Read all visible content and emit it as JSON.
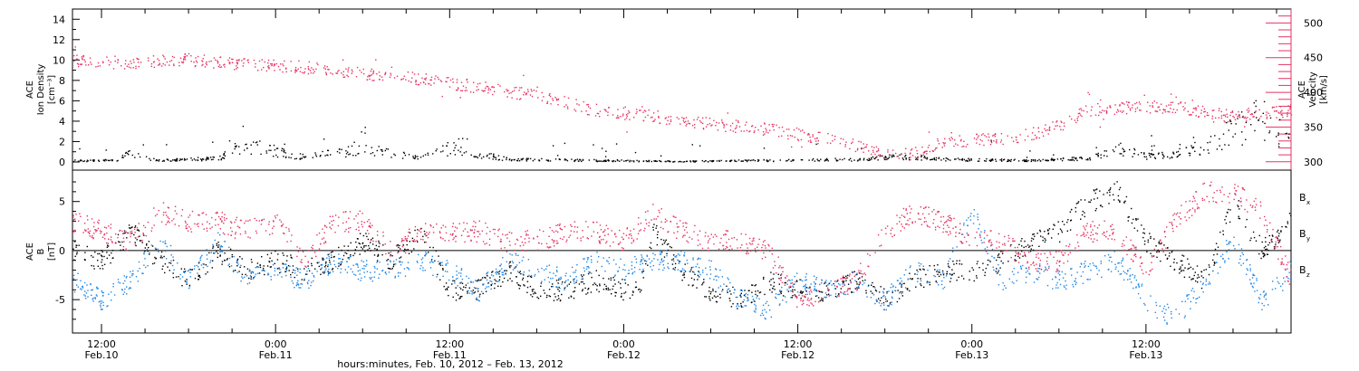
{
  "colors": {
    "black": "#000000",
    "red": "#e63363",
    "blue": "#1f87e6"
  },
  "footer": "hours:minutes, Feb. 10, 2012 – Feb. 13, 2012",
  "chart_data": [
    {
      "type": "scatter",
      "panel": "top",
      "ylabel": [
        "ACE",
        "Ion Density",
        "[cm⁻³]"
      ],
      "ylim": [
        -0.8,
        15
      ],
      "yticks": [
        0,
        2,
        4,
        6,
        8,
        10,
        12,
        14
      ],
      "ylabel_right": [
        "ACE",
        "Velocity",
        "[km/s]"
      ],
      "ylim_right": [
        288,
        520
      ],
      "yticks_right": [
        300,
        350,
        400,
        450,
        500
      ],
      "x_hours": [
        0,
        84
      ],
      "series": [
        {
          "axis": "left",
          "color": "black",
          "points": [
            [
              0,
              0.2
            ],
            [
              3,
              0.2
            ],
            [
              4,
              0.9
            ],
            [
              6,
              0.2
            ],
            [
              10,
              0.4
            ],
            [
              12,
              1.7
            ],
            [
              16,
              0.5
            ],
            [
              20,
              1.3
            ],
            [
              24,
              0.4
            ],
            [
              26,
              1.4
            ],
            [
              30,
              0.3
            ],
            [
              36,
              0.2
            ],
            [
              42,
              0.1
            ],
            [
              48,
              0.2
            ],
            [
              54,
              0.3
            ],
            [
              57,
              0.6
            ],
            [
              60,
              0.3
            ],
            [
              66,
              0.2
            ],
            [
              70,
              0.4
            ],
            [
              72,
              1.4
            ],
            [
              74,
              0.6
            ],
            [
              76,
              0.8
            ],
            [
              78,
              1.6
            ],
            [
              80,
              3.0
            ],
            [
              82,
              4.5
            ],
            [
              84,
              2.0
            ]
          ]
        },
        {
          "axis": "right",
          "color": "red",
          "points": [
            [
              0,
              446
            ],
            [
              4,
              443
            ],
            [
              8,
              448
            ],
            [
              12,
              440
            ],
            [
              16,
              437
            ],
            [
              20,
              428
            ],
            [
              24,
              420
            ],
            [
              28,
              408
            ],
            [
              32,
              396
            ],
            [
              36,
              375
            ],
            [
              40,
              366
            ],
            [
              44,
              355
            ],
            [
              48,
              347
            ],
            [
              52,
              334
            ],
            [
              56,
              312
            ],
            [
              58,
              312
            ],
            [
              60,
              330
            ],
            [
              64,
              334
            ],
            [
              66,
              340
            ],
            [
              68,
              352
            ],
            [
              70,
              375
            ],
            [
              72,
              378
            ],
            [
              76,
              380
            ],
            [
              80,
              366
            ],
            [
              84,
              375
            ]
          ]
        }
      ]
    },
    {
      "type": "scatter",
      "panel": "bottom",
      "ylabel": [
        "ACE",
        "B",
        "[nT]"
      ],
      "ylim": [
        -8.4,
        8.2
      ],
      "yticks": [
        -5,
        0,
        5
      ],
      "x_hours": [
        0,
        84
      ],
      "x_ticks": [
        {
          "h": 2,
          "time": "12:00",
          "date": "Feb.10"
        },
        {
          "h": 14,
          "time": "0:00",
          "date": "Feb.11"
        },
        {
          "h": 26,
          "time": "12:00",
          "date": "Feb.11"
        },
        {
          "h": 38,
          "time": "0:00",
          "date": "Feb.12"
        },
        {
          "h": 50,
          "time": "12:00",
          "date": "Feb.12"
        },
        {
          "h": 62,
          "time": "0:00",
          "date": "Feb.13"
        },
        {
          "h": 74,
          "time": "12:00",
          "date": "Feb.13"
        }
      ],
      "legend": [
        {
          "label": "B",
          "sub": "x",
          "color": "black"
        },
        {
          "label": "B",
          "sub": "y",
          "color": "blue"
        },
        {
          "label": "B",
          "sub": "z",
          "color": "red"
        }
      ],
      "series": [
        {
          "name": "Bx",
          "color": "black",
          "points": [
            [
              0,
              0
            ],
            [
              2,
              -1
            ],
            [
              4,
              2
            ],
            [
              6,
              -1
            ],
            [
              8,
              -3
            ],
            [
              10,
              0
            ],
            [
              12,
              -2
            ],
            [
              14,
              -1
            ],
            [
              16,
              -2
            ],
            [
              18,
              -1
            ],
            [
              20,
              1
            ],
            [
              22,
              -1
            ],
            [
              24,
              2
            ],
            [
              26,
              -4
            ],
            [
              28,
              -4
            ],
            [
              30,
              -2
            ],
            [
              32,
              -4
            ],
            [
              34,
              -4
            ],
            [
              36,
              -3
            ],
            [
              38,
              -4
            ],
            [
              39,
              -4
            ],
            [
              40,
              2
            ],
            [
              42,
              -2
            ],
            [
              44,
              -4
            ],
            [
              46,
              -5
            ],
            [
              48,
              -3
            ],
            [
              50,
              -4
            ],
            [
              52,
              -4
            ],
            [
              54,
              -3
            ],
            [
              56,
              -5
            ],
            [
              58,
              -3
            ],
            [
              60,
              -2
            ],
            [
              62,
              -2
            ],
            [
              64,
              -1
            ],
            [
              66,
              1
            ],
            [
              68,
              2
            ],
            [
              70,
              5
            ],
            [
              72,
              6
            ],
            [
              74,
              1
            ],
            [
              76,
              -1
            ],
            [
              78,
              -3
            ],
            [
              80,
              5
            ],
            [
              82,
              0
            ],
            [
              84,
              3
            ]
          ]
        },
        {
          "name": "By",
          "color": "blue",
          "points": [
            [
              0,
              -3
            ],
            [
              2,
              -5
            ],
            [
              4,
              -3
            ],
            [
              6,
              1
            ],
            [
              8,
              -3
            ],
            [
              10,
              1
            ],
            [
              12,
              -3
            ],
            [
              14,
              -2
            ],
            [
              16,
              -3
            ],
            [
              18,
              -1
            ],
            [
              20,
              -2
            ],
            [
              22,
              -2
            ],
            [
              24,
              -1
            ],
            [
              26,
              -2
            ],
            [
              28,
              -4
            ],
            [
              30,
              -1
            ],
            [
              32,
              -2
            ],
            [
              34,
              -3
            ],
            [
              36,
              -1
            ],
            [
              38,
              -2
            ],
            [
              40,
              -1
            ],
            [
              42,
              -1
            ],
            [
              44,
              -2
            ],
            [
              46,
              -5
            ],
            [
              48,
              -6
            ],
            [
              50,
              -3
            ],
            [
              52,
              -4
            ],
            [
              54,
              -3
            ],
            [
              56,
              -5
            ],
            [
              58,
              -2
            ],
            [
              60,
              -3
            ],
            [
              62,
              4
            ],
            [
              64,
              -3
            ],
            [
              66,
              -2
            ],
            [
              68,
              -3
            ],
            [
              70,
              -2
            ],
            [
              72,
              -1
            ],
            [
              74,
              -5
            ],
            [
              76,
              -7
            ],
            [
              78,
              -3
            ],
            [
              80,
              1
            ],
            [
              82,
              -5
            ],
            [
              84,
              -2
            ]
          ]
        },
        {
          "name": "Bz",
          "color": "red",
          "points": [
            [
              0,
              3
            ],
            [
              2,
              2
            ],
            [
              4,
              1
            ],
            [
              6,
              4
            ],
            [
              8,
              3
            ],
            [
              10,
              3
            ],
            [
              12,
              2
            ],
            [
              14,
              3
            ],
            [
              16,
              -1
            ],
            [
              18,
              3
            ],
            [
              20,
              3
            ],
            [
              22,
              0
            ],
            [
              24,
              2
            ],
            [
              26,
              2
            ],
            [
              28,
              2
            ],
            [
              30,
              1
            ],
            [
              32,
              1
            ],
            [
              34,
              2
            ],
            [
              36,
              2
            ],
            [
              38,
              1
            ],
            [
              40,
              4
            ],
            [
              42,
              2
            ],
            [
              44,
              1
            ],
            [
              46,
              1
            ],
            [
              48,
              0
            ],
            [
              50,
              -5
            ],
            [
              52,
              -4
            ],
            [
              54,
              -3
            ],
            [
              56,
              2
            ],
            [
              58,
              4
            ],
            [
              60,
              3
            ],
            [
              62,
              1
            ],
            [
              64,
              1
            ],
            [
              66,
              -1
            ],
            [
              68,
              -1
            ],
            [
              70,
              2
            ],
            [
              72,
              2
            ],
            [
              74,
              -2
            ],
            [
              76,
              3
            ],
            [
              78,
              6
            ],
            [
              80,
              6
            ],
            [
              82,
              4
            ],
            [
              84,
              -3
            ]
          ]
        }
      ]
    }
  ]
}
